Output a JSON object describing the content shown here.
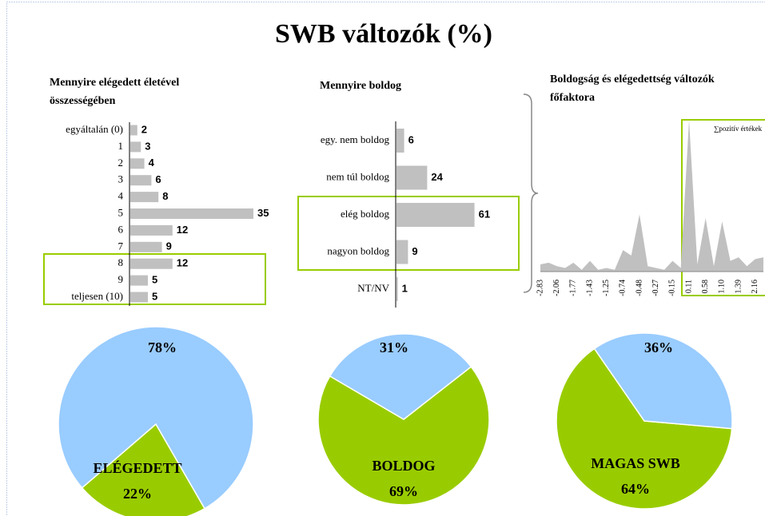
{
  "title": "SWB változók (%)",
  "chart_data": [
    {
      "type": "hbar",
      "title": "Mennyire elégedett életével összességében",
      "categories": [
        "egyáltalán (0)",
        "1",
        "2",
        "3",
        "4",
        "5",
        "6",
        "7",
        "8",
        "9",
        "teljesen (10)"
      ],
      "values": [
        2,
        3,
        4,
        6,
        8,
        35,
        12,
        9,
        12,
        5,
        5
      ],
      "color": "#c0c0c0"
    },
    {
      "type": "hbar",
      "title": "Mennyire boldog",
      "categories": [
        "egy. nem boldog",
        "nem túl boldog",
        "elég boldog",
        "nagyon boldog",
        "NT/NV"
      ],
      "values": [
        6,
        24,
        61,
        9,
        1
      ],
      "color": "#c0c0c0"
    },
    {
      "type": "area",
      "title": "Boldogság és elégedettség változók főfaktora",
      "annotation": "∑pozitív értékek",
      "categories": [
        "-2.83",
        null,
        "-2.06",
        null,
        "-1.77",
        null,
        "-1.43",
        null,
        "-1.25",
        null,
        "-0.74",
        null,
        "-0.48",
        null,
        "-0.27",
        null,
        "-0.15",
        null,
        "0.11",
        null,
        "0.58",
        null,
        "1.10",
        null,
        "1.39",
        null,
        "2.16",
        null
      ],
      "values": [
        4,
        5,
        3,
        2,
        5,
        1,
        6,
        1,
        2,
        1,
        12,
        9,
        32,
        3,
        2,
        1,
        6,
        2,
        85,
        4,
        30,
        3,
        28,
        6,
        8,
        3,
        7,
        8
      ],
      "color": "#c0c0c0"
    },
    {
      "type": "pie",
      "labels": [
        "ELÉGEDETT",
        null
      ],
      "values": [
        22,
        78
      ],
      "value_labels": [
        "22%",
        "78%"
      ],
      "colors": [
        "#99cc00",
        "#99ccff"
      ]
    },
    {
      "type": "pie",
      "labels": [
        "BOLDOG",
        null
      ],
      "values": [
        69,
        31
      ],
      "value_labels": [
        "69%",
        "31%"
      ],
      "colors": [
        "#99cc00",
        "#99ccff"
      ]
    },
    {
      "type": "pie",
      "labels": [
        "MAGAS SWB",
        null
      ],
      "values": [
        64,
        36
      ],
      "value_labels": [
        "64%",
        "36%"
      ],
      "colors": [
        "#99cc00",
        "#99ccff"
      ]
    }
  ]
}
